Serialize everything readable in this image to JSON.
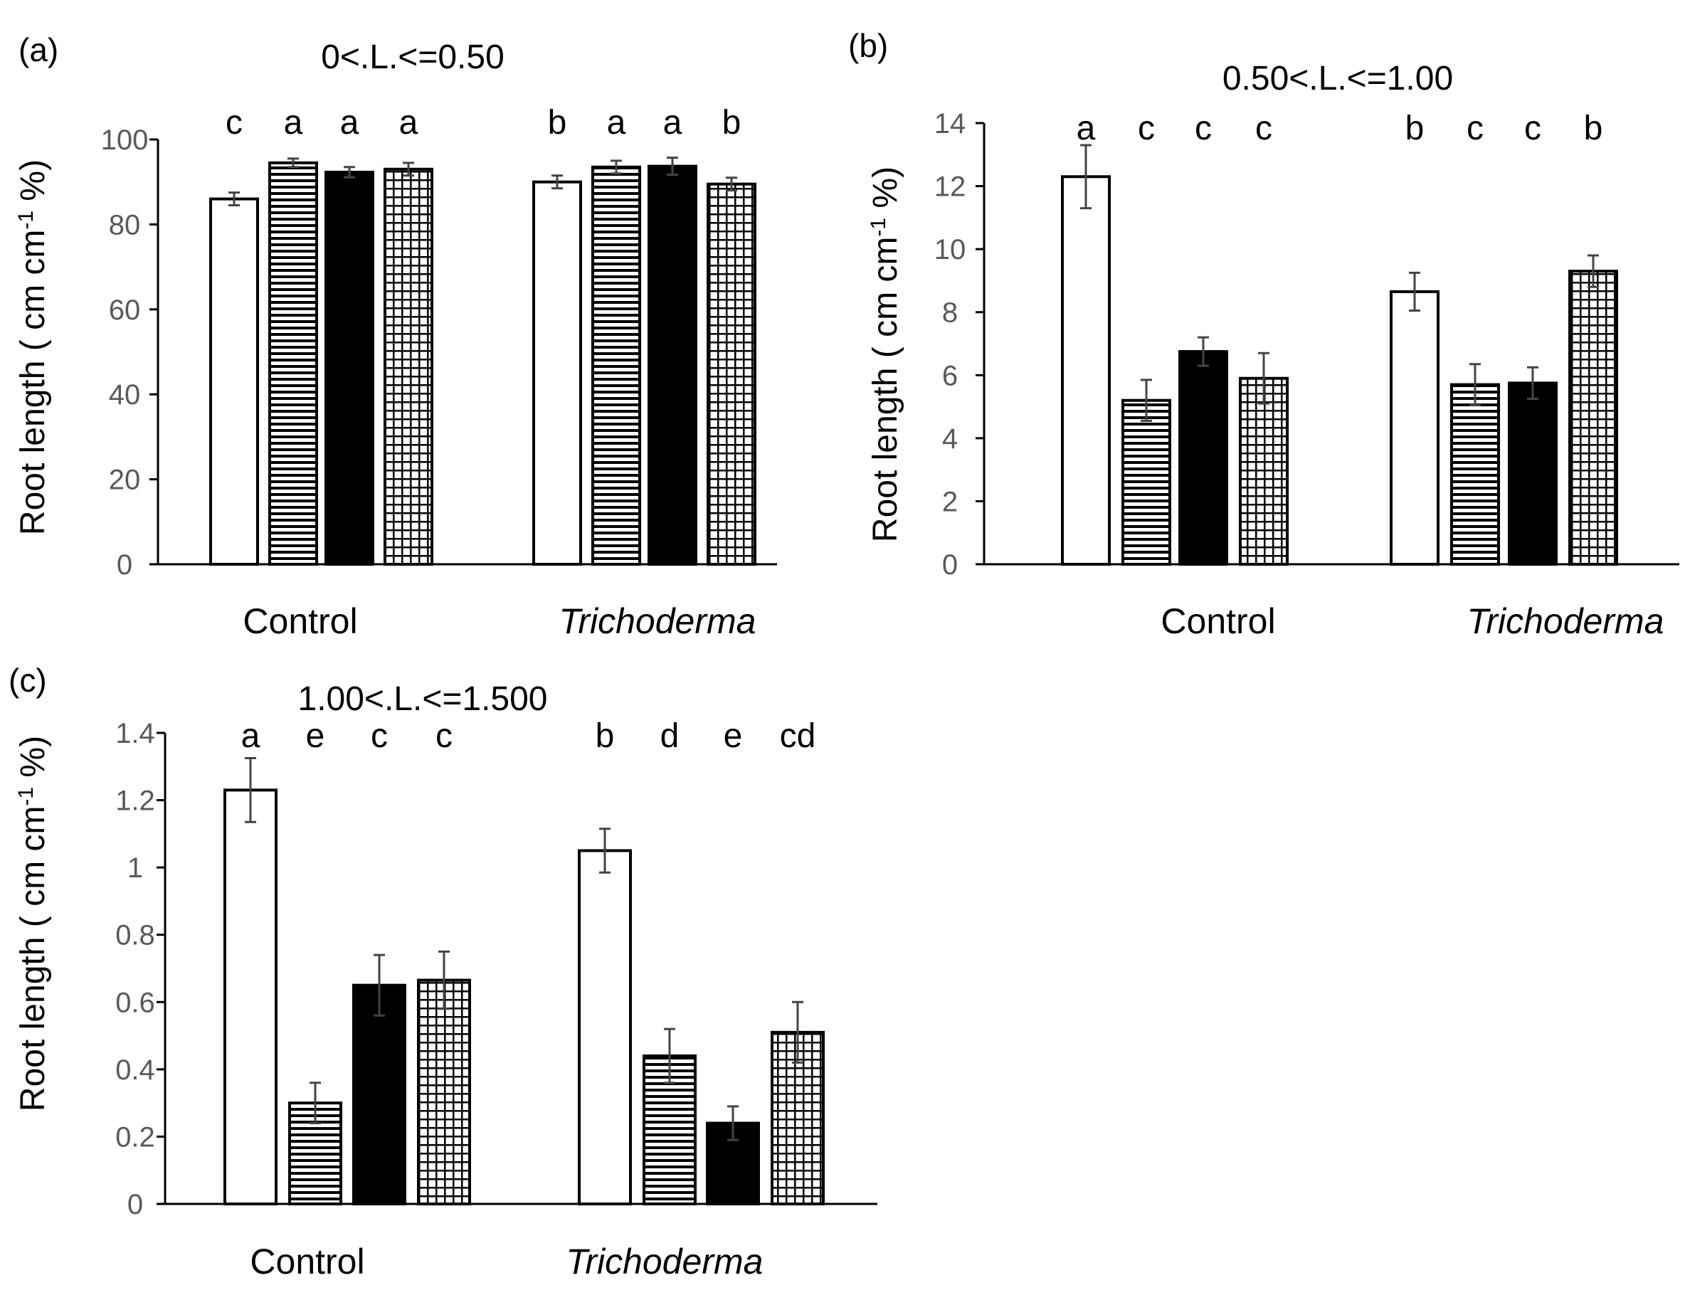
{
  "chart_data": [
    {
      "panel": "(a)",
      "type": "bar",
      "title": "0<.L.<=0.50",
      "ylabel": "Root length ( cm cm",
      "ylabel_sup": "-1",
      "ylabel_end": " %)",
      "ylim": [
        0,
        100
      ],
      "yticks": [
        "0",
        "20",
        "40",
        "60",
        "80",
        "100"
      ],
      "ytick_values": [
        0,
        20,
        40,
        60,
        80,
        100
      ],
      "categories": [
        "Control",
        "Trichoderma"
      ],
      "series": [
        {
          "pattern": "white",
          "values": [
            86,
            90
          ],
          "errors": [
            1.5,
            1.5
          ]
        },
        {
          "pattern": "hstripe",
          "values": [
            94.5,
            93.5
          ],
          "errors": [
            1.0,
            1.5
          ]
        },
        {
          "pattern": "black",
          "values": [
            92.3,
            93.7
          ],
          "errors": [
            1.2,
            2.0
          ]
        },
        {
          "pattern": "grid",
          "values": [
            93,
            89.5
          ],
          "errors": [
            1.5,
            1.5
          ]
        }
      ],
      "significance": [
        [
          "c",
          "a",
          "a",
          "a"
        ],
        [
          "b",
          "a",
          "a",
          "b"
        ]
      ]
    },
    {
      "panel": "(b)",
      "type": "bar",
      "title": "0.50<.L.<=1.00",
      "ylabel": "Root length ( cm cm",
      "ylabel_sup": "-1",
      "ylabel_end": " %)",
      "ylim": [
        0,
        14
      ],
      "yticks": [
        "0",
        "2",
        "4",
        "6",
        "8",
        "10",
        "12",
        "14"
      ],
      "ytick_values": [
        0,
        2,
        4,
        6,
        8,
        10,
        12,
        14
      ],
      "categories": [
        "Control",
        "Trichoderma"
      ],
      "series": [
        {
          "pattern": "white",
          "values": [
            12.3,
            8.65
          ],
          "errors": [
            1.0,
            0.6
          ]
        },
        {
          "pattern": "hstripe",
          "values": [
            5.2,
            5.7
          ],
          "errors": [
            0.65,
            0.65
          ]
        },
        {
          "pattern": "black",
          "values": [
            6.75,
            5.75
          ],
          "errors": [
            0.45,
            0.5
          ]
        },
        {
          "pattern": "grid",
          "values": [
            5.9,
            9.3
          ],
          "errors": [
            0.8,
            0.5
          ]
        }
      ],
      "significance": [
        [
          "a",
          "c",
          "c",
          "c"
        ],
        [
          "b",
          "c",
          "c",
          "b"
        ]
      ]
    },
    {
      "panel": "(c)",
      "type": "bar",
      "title": "1.00<.L.<=1.500",
      "ylabel": "Root length ( cm cm",
      "ylabel_sup": "-1",
      "ylabel_end": " %)",
      "ylim": [
        0,
        1.4
      ],
      "yticks": [
        "0",
        "0.2",
        "0.4",
        "0.6",
        "0.8",
        "1",
        "1.2",
        "1.4"
      ],
      "ytick_values": [
        0,
        0.2,
        0.4,
        0.6,
        0.8,
        1.0,
        1.2,
        1.4
      ],
      "categories": [
        "Control",
        "Trichoderma"
      ],
      "series": [
        {
          "pattern": "white",
          "values": [
            1.23,
            1.05
          ],
          "errors": [
            0.095,
            0.065
          ]
        },
        {
          "pattern": "hstripe",
          "values": [
            0.3,
            0.44
          ],
          "errors": [
            0.06,
            0.08
          ]
        },
        {
          "pattern": "black",
          "values": [
            0.65,
            0.24
          ],
          "errors": [
            0.09,
            0.05
          ]
        },
        {
          "pattern": "grid",
          "values": [
            0.665,
            0.51
          ],
          "errors": [
            0.085,
            0.09
          ]
        }
      ],
      "significance": [
        [
          "a",
          "e",
          "c",
          "c"
        ],
        [
          "b",
          "d",
          "e",
          "cd"
        ]
      ]
    }
  ]
}
